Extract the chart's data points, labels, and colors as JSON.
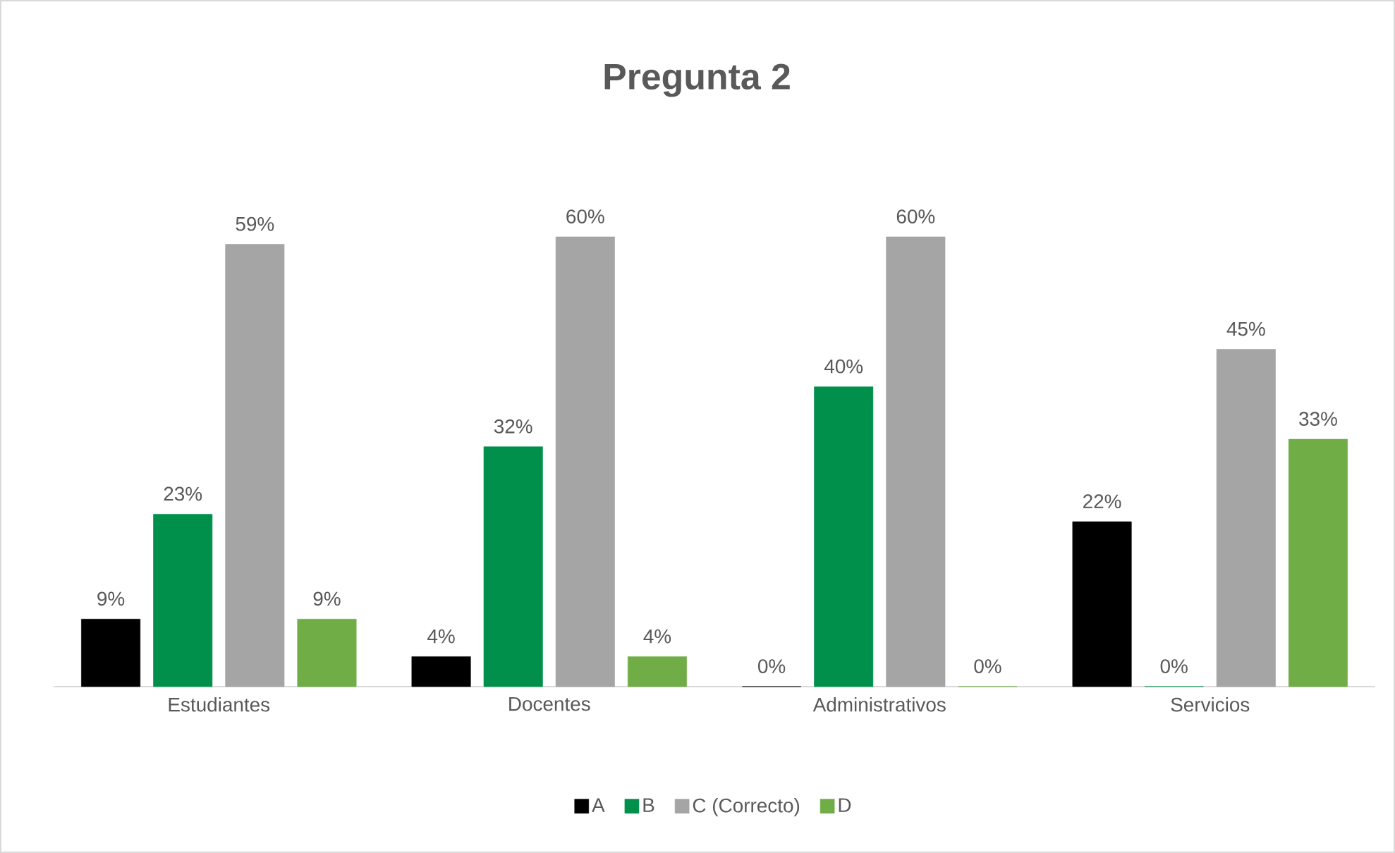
{
  "chart_data": {
    "type": "bar",
    "title": "Pregunta 2",
    "categories": [
      "Estudiantes",
      "Docentes",
      "Administrativos",
      "Servicios"
    ],
    "series": [
      {
        "name": "A",
        "color": "#000000",
        "values": [
          9,
          4,
          0,
          22
        ],
        "value_labels": [
          "9%",
          "4%",
          "0%",
          "22%"
        ]
      },
      {
        "name": "B",
        "color": "#00904c",
        "values": [
          23,
          32,
          40,
          0
        ],
        "value_labels": [
          "23%",
          "32%",
          "40%",
          "0%"
        ]
      },
      {
        "name": "C (Correcto)",
        "color": "#a5a5a5",
        "values": [
          59,
          60,
          60,
          45
        ],
        "value_labels": [
          "59%",
          "60%",
          "60%",
          "45%"
        ]
      },
      {
        "name": "D",
        "color": "#70ad47",
        "values": [
          9,
          4,
          0,
          33
        ],
        "value_labels": [
          "9%",
          "4%",
          "0%",
          "33%"
        ]
      }
    ],
    "legend": "bottom"
  }
}
